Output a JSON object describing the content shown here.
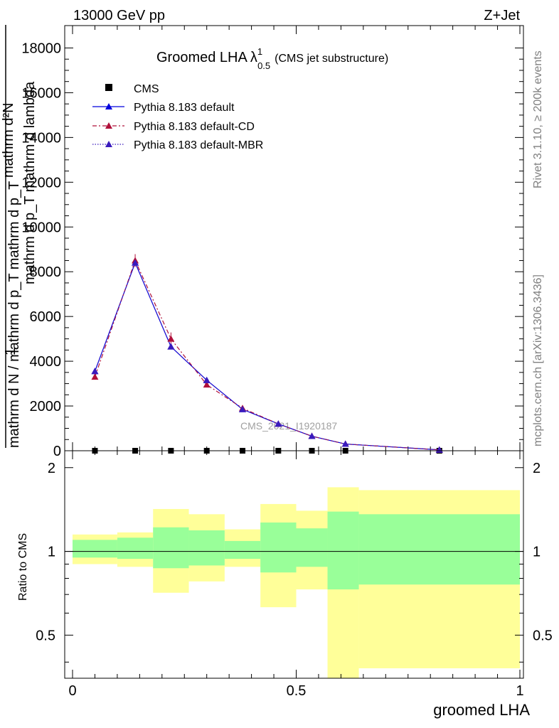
{
  "header": {
    "left": "13000 GeV pp",
    "right": "Z+Jet"
  },
  "side_labels": {
    "top": "Rivet 3.1.10, ≥ 200k events",
    "bottom": "mcplots.cern.ch [arXiv:1306.3436]"
  },
  "chart_data": [
    {
      "type": "line",
      "title_main": "Groomed LHA",
      "title_lambda": "λ",
      "title_sup": "1",
      "title_sub": "0.5",
      "title_note": "(CMS jet substructure)",
      "ylabel_top": "mathrm d²N",
      "ylabel_top2": "mathrm d p_T mathrm d lambda",
      "ylabel_bottom": "1",
      "ylabel_bottom2": "mathrm d N / mathrm d p_T mathrm d p_T",
      "watermark": "CMS_2021_I1920187",
      "ylim": [
        0,
        19000
      ],
      "xlim": [
        0,
        1
      ],
      "y_ticks": [
        0,
        2000,
        4000,
        6000,
        8000,
        10000,
        12000,
        14000,
        16000,
        18000
      ],
      "y_tick_labels": [
        "0",
        "2000",
        "4000",
        "6000",
        "8000",
        "10000",
        "12000",
        "14000",
        "16000",
        "18000"
      ],
      "series": [
        {
          "name": "CMS",
          "color": "#000000",
          "marker": "square",
          "x": [
            0.05,
            0.14,
            0.22,
            0.3,
            0.38,
            0.46,
            0.535,
            0.61,
            0.82
          ],
          "y": [
            0,
            0,
            0,
            0,
            0,
            0,
            0,
            0,
            0
          ]
        },
        {
          "name": "Pythia 8.183 default",
          "color": "#0000dd",
          "style": "solid",
          "marker": "triangle",
          "x": [
            0.05,
            0.14,
            0.22,
            0.3,
            0.38,
            0.46,
            0.535,
            0.61,
            0.82
          ],
          "y": [
            3550,
            8400,
            4650,
            3150,
            1850,
            1200,
            650,
            300,
            40
          ]
        },
        {
          "name": "Pythia 8.183 default-CD",
          "color": "#b0103a",
          "style": "dashed",
          "marker": "triangle",
          "x": [
            0.05,
            0.14,
            0.22,
            0.3,
            0.38,
            0.46,
            0.535,
            0.61,
            0.82
          ],
          "y": [
            3300,
            8500,
            5000,
            2950,
            1900,
            1200,
            650,
            300,
            40
          ]
        },
        {
          "name": "Pythia 8.183 default-MBR",
          "color": "#3a1bbd",
          "style": "dotted",
          "marker": "triangle",
          "x": [
            0.05,
            0.14,
            0.22,
            0.3,
            0.38,
            0.46,
            0.535,
            0.61,
            0.82
          ],
          "y": [
            3550,
            8400,
            4650,
            3150,
            1850,
            1200,
            650,
            300,
            40
          ]
        }
      ]
    },
    {
      "type": "area",
      "ylabel": "Ratio to CMS",
      "xlabel": "groomed LHA",
      "ylim": [
        0.35,
        2.3
      ],
      "xlim": [
        0,
        1
      ],
      "y_ticks": [
        0.5,
        1,
        2
      ],
      "y_tick_labels": [
        "0.5",
        "1",
        "2"
      ],
      "x_ticks": [
        0,
        0.5,
        1
      ],
      "x_tick_labels": [
        "0",
        "0.5",
        "1"
      ],
      "reference_line": 1,
      "bands": {
        "inner_color": "#99ff99",
        "outer_color": "#ffff99",
        "bins": [
          {
            "xlo": 0.0,
            "xhi": 0.1,
            "inner": [
              0.95,
              1.1
            ],
            "outer": [
              0.9,
              1.15
            ]
          },
          {
            "xlo": 0.1,
            "xhi": 0.18,
            "inner": [
              0.94,
              1.12
            ],
            "outer": [
              0.88,
              1.17
            ]
          },
          {
            "xlo": 0.18,
            "xhi": 0.26,
            "inner": [
              0.87,
              1.22
            ],
            "outer": [
              0.71,
              1.42
            ]
          },
          {
            "xlo": 0.26,
            "xhi": 0.34,
            "inner": [
              0.89,
              1.19
            ],
            "outer": [
              0.78,
              1.36
            ]
          },
          {
            "xlo": 0.34,
            "xhi": 0.42,
            "inner": [
              0.94,
              1.09
            ],
            "outer": [
              0.88,
              1.2
            ]
          },
          {
            "xlo": 0.42,
            "xhi": 0.5,
            "inner": [
              0.84,
              1.27
            ],
            "outer": [
              0.63,
              1.48
            ]
          },
          {
            "xlo": 0.5,
            "xhi": 0.57,
            "inner": [
              0.88,
              1.21
            ],
            "outer": [
              0.73,
              1.4
            ]
          },
          {
            "xlo": 0.57,
            "xhi": 0.64,
            "inner": [
              0.73,
              1.39
            ],
            "outer": [
              0.35,
              1.7
            ]
          },
          {
            "xlo": 0.64,
            "xhi": 1.0,
            "inner": [
              0.76,
              1.36
            ],
            "outer": [
              0.38,
              1.66
            ]
          }
        ]
      }
    }
  ]
}
